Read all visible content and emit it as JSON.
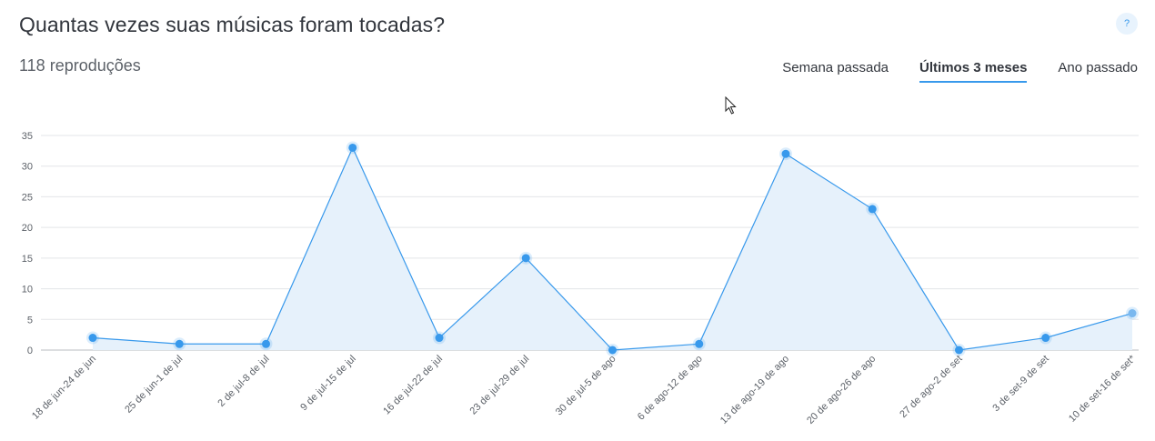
{
  "header": {
    "title": "Quantas vezes suas músicas foram tocadas?",
    "help_label": "?",
    "total": "118 reproduções"
  },
  "tabs": [
    {
      "label": "Semana passada",
      "active": false
    },
    {
      "label": "Últimos 3 meses",
      "active": true
    },
    {
      "label": "Ano passado",
      "active": false
    }
  ],
  "colors": {
    "accent": "#3899ec",
    "area_fill": "#e6f1fb"
  },
  "chart_data": {
    "type": "area",
    "categories": [
      "18 de jun-24 de jun",
      "25 de jun-1 de jul",
      "2 de jul-8 de jul",
      "9 de jul-15 de jul",
      "16 de jul-22 de jul",
      "23 de jul-29 de jul",
      "30 de jul-5 de ago",
      "6 de ago-12 de ago",
      "13 de ago-19 de ago",
      "20 de ago-26 de ago",
      "27 de ago-2 de set",
      "3 de set-9 de set",
      "10 de set-16 de set*"
    ],
    "values": [
      2,
      1,
      1,
      33,
      2,
      15,
      0,
      1,
      32,
      23,
      0,
      2,
      6
    ],
    "ylim": [
      0,
      35
    ],
    "yticks": [
      0,
      5,
      10,
      15,
      20,
      25,
      30,
      35
    ],
    "grid": true
  }
}
